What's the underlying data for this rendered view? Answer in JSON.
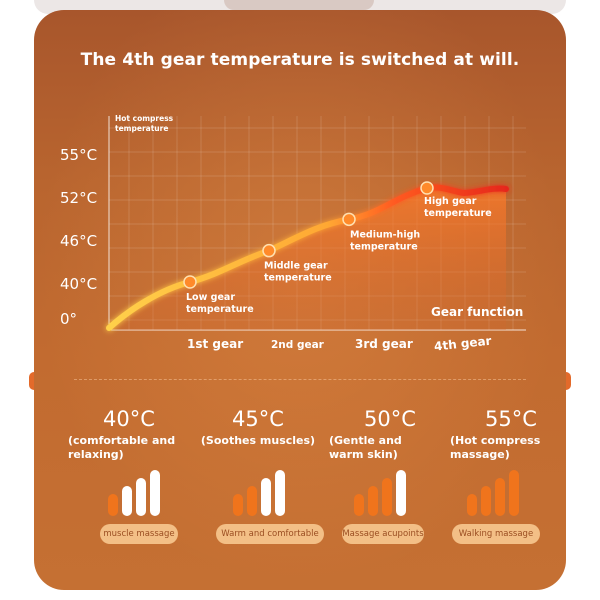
{
  "headline": "The 4th gear temperature is switched at will.",
  "chart_data": {
    "type": "area",
    "title": "The 4th gear temperature is switched at will.",
    "ylabel": "Hot compress\ntemperature",
    "xlabel": "Gear function",
    "y_tick_labels": [
      "0°",
      "40°C",
      "46°C",
      "52°C",
      "55°C"
    ],
    "x_tick_labels": [
      "1st gear",
      "2nd gear",
      "3rd gear",
      "4th gear"
    ],
    "points": [
      {
        "gear": "1st gear",
        "value": 40,
        "label": "Low gear\ntemperature"
      },
      {
        "gear": "2nd gear",
        "value": 45,
        "label": "Middle gear\ntemperature"
      },
      {
        "gear": "3rd gear",
        "value": 50,
        "label": "Medium-high\ntemperature"
      },
      {
        "gear": "4th gear",
        "value": 55,
        "label": "High gear\ntemperature"
      }
    ],
    "grid": true
  },
  "modes": [
    {
      "temp": "40°C",
      "desc": "(comfortable and\nrelaxing)",
      "button": "muscle massage",
      "level": 1
    },
    {
      "temp": "45°C",
      "desc": "(Soothes muscles)",
      "button": "Warm and comfortable",
      "level": 2
    },
    {
      "temp": "50°C",
      "desc": "(Gentle and\nwarm skin)",
      "button": "Massage acupoints",
      "level": 3
    },
    {
      "temp": "55°C",
      "desc": "(Hot compress\nmassage)",
      "button": "Walking massage",
      "level": 4
    }
  ],
  "colors": {
    "bar_active": "#f0741c",
    "bar_inactive": "#ffffff",
    "curve_hot": "#e6281c",
    "curve_warm": "#ffb23c",
    "point": "#ff8a2a"
  }
}
